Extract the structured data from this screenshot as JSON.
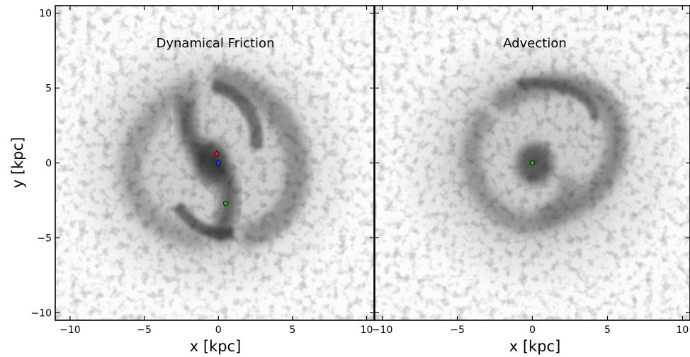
{
  "chart_data": [
    {
      "type": "scatter",
      "title": "Dynamical Friction",
      "xlabel": "x [kpc]",
      "ylabel": "y [kpc]",
      "xlim": [
        -11,
        10.5
      ],
      "ylim": [
        -10.5,
        10.5
      ],
      "xticks": [
        -10,
        -5,
        0,
        5,
        10
      ],
      "yticks": [
        -10,
        -5,
        0,
        5,
        10
      ],
      "xtick_labels": [
        "−10",
        "−5",
        "0",
        "5",
        "10"
      ],
      "ytick_labels": [
        "−10",
        "−5",
        "0",
        "5",
        "10"
      ],
      "background": "grayscale gas density map",
      "points": [
        {
          "x": -0.1,
          "y": 0.6,
          "color": "#e41a1c"
        },
        {
          "x": 0.0,
          "y": 0.0,
          "color": "#1f3fd6"
        },
        {
          "x": 0.5,
          "y": -2.7,
          "color": "#33a02c"
        }
      ]
    },
    {
      "type": "scatter",
      "title": "Advection",
      "xlabel": "x [kpc]",
      "ylabel": "",
      "xlim": [
        -10.5,
        10.5
      ],
      "ylim": [
        -10.5,
        10.5
      ],
      "xticks": [
        -10,
        -5,
        0,
        5,
        10
      ],
      "xtick_labels": [
        "−10",
        "−5",
        "0",
        "5",
        "10"
      ],
      "background": "grayscale gas density map",
      "points": [
        {
          "x": 0.0,
          "y": 0.0,
          "color": "#33a02c"
        }
      ]
    }
  ]
}
